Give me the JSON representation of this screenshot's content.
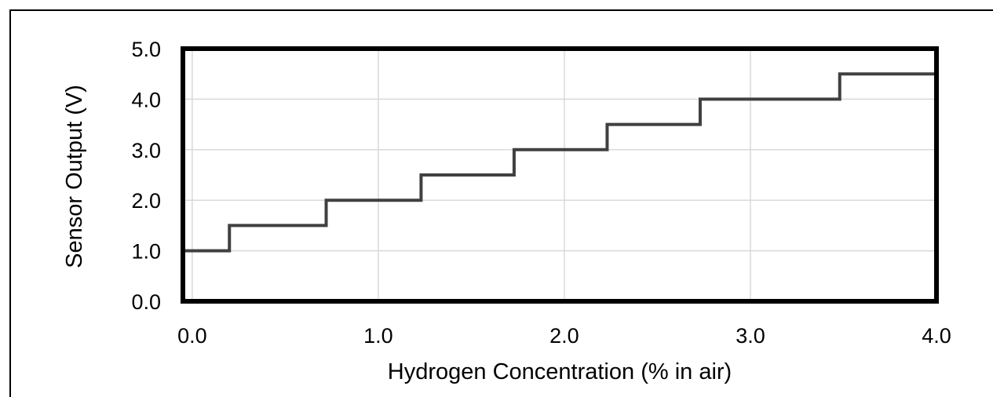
{
  "chart_data": {
    "type": "line",
    "step": true,
    "title": "",
    "xlabel": "Hydrogen Concentration (% in air)",
    "ylabel": "Sensor Output (V)",
    "xlim": [
      -0.05,
      4.0
    ],
    "ylim": [
      0.0,
      5.0
    ],
    "xticks": [
      0.0,
      1.0,
      2.0,
      3.0,
      4.0
    ],
    "xtick_labels": [
      "0.0",
      "1.0",
      "2.0",
      "3.0",
      "4.0"
    ],
    "yticks": [
      0.0,
      1.0,
      2.0,
      3.0,
      4.0,
      5.0
    ],
    "ytick_labels": [
      "0.0",
      "1.0",
      "2.0",
      "3.0",
      "4.0",
      "5.0"
    ],
    "grid": true,
    "legend": "none",
    "series": [
      {
        "color": "#404040",
        "x": [
          -0.05,
          0.2,
          0.2,
          0.72,
          0.72,
          1.23,
          1.23,
          1.73,
          1.73,
          2.23,
          2.23,
          2.73,
          2.73,
          3.48,
          3.48,
          4.0
        ],
        "y": [
          1.0,
          1.0,
          1.5,
          1.5,
          2.0,
          2.0,
          2.5,
          2.5,
          3.0,
          3.0,
          3.5,
          3.5,
          4.0,
          4.0,
          4.5,
          4.5
        ]
      }
    ]
  }
}
